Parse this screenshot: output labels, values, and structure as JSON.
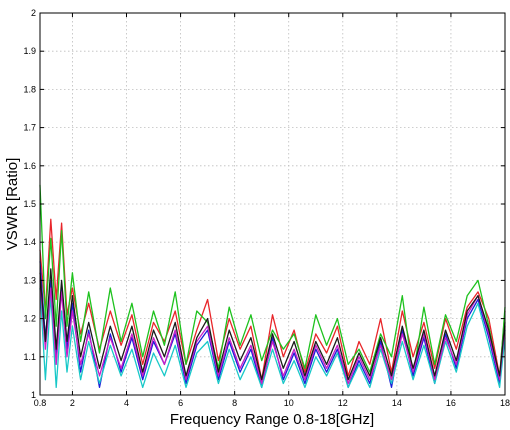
{
  "chart_data": {
    "type": "line",
    "title": "",
    "xlabel": "Frequency Range 0.8-18[GHz]",
    "ylabel": "VSWR [Ratio]",
    "xlim": [
      0.8,
      18
    ],
    "ylim": [
      1,
      2
    ],
    "xticks": [
      0.8,
      2,
      4,
      6,
      8,
      10,
      12,
      14,
      16,
      18
    ],
    "xtick_labels": [
      "0.8",
      "2",
      "4",
      "6",
      "8",
      "10",
      "12",
      "14",
      "16",
      "18"
    ],
    "yticks": [
      1,
      1.1,
      1.2,
      1.3,
      1.4,
      1.5,
      1.6,
      1.7,
      1.8,
      1.9,
      2
    ],
    "ytick_labels": [
      "1",
      "1.1",
      "1.2",
      "1.3",
      "1.4",
      "1.5",
      "1.6",
      "1.7",
      "1.8",
      "1.9",
      "2"
    ],
    "grid": true,
    "series": [
      {
        "color": "#e8262a",
        "x": [
          0.8,
          1.0,
          1.2,
          1.4,
          1.6,
          1.8,
          2.0,
          2.3,
          2.6,
          3.0,
          3.4,
          3.8,
          4.2,
          4.6,
          5.0,
          5.4,
          5.8,
          6.2,
          6.6,
          7.0,
          7.4,
          7.8,
          8.2,
          8.6,
          9.0,
          9.4,
          9.8,
          10.2,
          10.6,
          11.0,
          11.4,
          11.8,
          12.2,
          12.6,
          13.0,
          13.4,
          13.8,
          14.2,
          14.6,
          15.0,
          15.4,
          15.8,
          16.2,
          16.6,
          17.0,
          17.4,
          17.8,
          18.0
        ],
        "y": [
          1.38,
          1.22,
          1.46,
          1.25,
          1.45,
          1.21,
          1.28,
          1.16,
          1.24,
          1.12,
          1.22,
          1.13,
          1.21,
          1.08,
          1.19,
          1.14,
          1.22,
          1.08,
          1.17,
          1.25,
          1.09,
          1.2,
          1.12,
          1.18,
          1.04,
          1.21,
          1.1,
          1.17,
          1.06,
          1.16,
          1.11,
          1.18,
          1.05,
          1.14,
          1.08,
          1.2,
          1.06,
          1.22,
          1.1,
          1.19,
          1.07,
          1.2,
          1.12,
          1.23,
          1.27,
          1.2,
          1.05,
          1.22
        ]
      },
      {
        "color": "#1ec21e",
        "x": [
          0.8,
          1.0,
          1.2,
          1.4,
          1.6,
          1.8,
          2.0,
          2.3,
          2.6,
          3.0,
          3.4,
          3.8,
          4.2,
          4.6,
          5.0,
          5.4,
          5.8,
          6.2,
          6.6,
          7.0,
          7.4,
          7.8,
          8.2,
          8.6,
          9.0,
          9.4,
          9.8,
          10.2,
          10.6,
          11.0,
          11.4,
          11.8,
          12.2,
          12.6,
          13.0,
          13.4,
          13.8,
          14.2,
          14.6,
          15.0,
          15.4,
          15.8,
          16.2,
          16.6,
          17.0,
          17.4,
          17.8,
          18.0
        ],
        "y": [
          1.55,
          1.2,
          1.41,
          1.18,
          1.43,
          1.18,
          1.32,
          1.14,
          1.27,
          1.11,
          1.28,
          1.14,
          1.24,
          1.1,
          1.22,
          1.13,
          1.27,
          1.08,
          1.22,
          1.19,
          1.07,
          1.23,
          1.13,
          1.21,
          1.09,
          1.17,
          1.12,
          1.16,
          1.07,
          1.21,
          1.13,
          1.2,
          1.08,
          1.12,
          1.06,
          1.16,
          1.1,
          1.26,
          1.05,
          1.23,
          1.08,
          1.21,
          1.14,
          1.26,
          1.3,
          1.18,
          1.04,
          1.23
        ]
      },
      {
        "color": "#1c1cd8",
        "x": [
          0.8,
          1.0,
          1.2,
          1.4,
          1.6,
          1.8,
          2.0,
          2.3,
          2.6,
          3.0,
          3.4,
          3.8,
          4.2,
          4.6,
          5.0,
          5.4,
          5.8,
          6.2,
          6.6,
          7.0,
          7.4,
          7.8,
          8.2,
          8.6,
          9.0,
          9.4,
          9.8,
          10.2,
          10.6,
          11.0,
          11.4,
          11.8,
          12.2,
          12.6,
          13.0,
          13.4,
          13.8,
          14.2,
          14.6,
          15.0,
          15.4,
          15.8,
          16.2,
          16.6,
          17.0,
          17.4,
          17.8,
          18.0
        ],
        "y": [
          1.35,
          1.15,
          1.3,
          1.1,
          1.28,
          1.12,
          1.24,
          1.06,
          1.17,
          1.02,
          1.16,
          1.06,
          1.15,
          1.04,
          1.14,
          1.08,
          1.16,
          1.03,
          1.13,
          1.17,
          1.04,
          1.14,
          1.06,
          1.12,
          1.02,
          1.15,
          1.04,
          1.11,
          1.03,
          1.12,
          1.06,
          1.12,
          1.02,
          1.09,
          1.03,
          1.14,
          1.02,
          1.17,
          1.05,
          1.15,
          1.03,
          1.16,
          1.07,
          1.2,
          1.25,
          1.15,
          1.03,
          1.17
        ]
      },
      {
        "color": "#18c8c8",
        "x": [
          0.8,
          1.0,
          1.2,
          1.4,
          1.6,
          1.8,
          2.0,
          2.3,
          2.6,
          3.0,
          3.4,
          3.8,
          4.2,
          4.6,
          5.0,
          5.4,
          5.8,
          6.2,
          6.6,
          7.0,
          7.4,
          7.8,
          8.2,
          8.6,
          9.0,
          9.4,
          9.8,
          10.2,
          10.6,
          11.0,
          11.4,
          11.8,
          12.2,
          12.6,
          13.0,
          13.4,
          13.8,
          14.2,
          14.6,
          15.0,
          15.4,
          15.8,
          16.2,
          16.6,
          17.0,
          17.4,
          17.8,
          18.0
        ],
        "y": [
          1.28,
          1.04,
          1.26,
          1.02,
          1.22,
          1.06,
          1.18,
          1.04,
          1.14,
          1.03,
          1.13,
          1.05,
          1.12,
          1.02,
          1.11,
          1.05,
          1.13,
          1.02,
          1.11,
          1.14,
          1.03,
          1.12,
          1.04,
          1.1,
          1.02,
          1.12,
          1.03,
          1.09,
          1.02,
          1.1,
          1.05,
          1.11,
          1.02,
          1.08,
          1.02,
          1.12,
          1.03,
          1.14,
          1.04,
          1.13,
          1.03,
          1.14,
          1.06,
          1.18,
          1.24,
          1.13,
          1.02,
          1.15
        ]
      },
      {
        "color": "#c81ec8",
        "x": [
          0.8,
          1.0,
          1.2,
          1.4,
          1.6,
          1.8,
          2.0,
          2.3,
          2.6,
          3.0,
          3.4,
          3.8,
          4.2,
          4.6,
          5.0,
          5.4,
          5.8,
          6.2,
          6.6,
          7.0,
          7.4,
          7.8,
          8.2,
          8.6,
          9.0,
          9.4,
          9.8,
          10.2,
          10.6,
          11.0,
          11.4,
          11.8,
          12.2,
          12.6,
          13.0,
          13.4,
          13.8,
          14.2,
          14.6,
          15.0,
          15.4,
          15.8,
          16.2,
          16.6,
          17.0,
          17.4,
          17.8,
          18.0
        ],
        "y": [
          1.3,
          1.12,
          1.28,
          1.08,
          1.27,
          1.1,
          1.22,
          1.08,
          1.16,
          1.05,
          1.15,
          1.07,
          1.16,
          1.05,
          1.15,
          1.08,
          1.17,
          1.04,
          1.14,
          1.18,
          1.05,
          1.15,
          1.07,
          1.13,
          1.03,
          1.14,
          1.05,
          1.12,
          1.04,
          1.13,
          1.07,
          1.13,
          1.03,
          1.1,
          1.04,
          1.13,
          1.04,
          1.16,
          1.06,
          1.16,
          1.04,
          1.15,
          1.08,
          1.21,
          1.26,
          1.16,
          1.04,
          1.18
        ]
      },
      {
        "color": "#1a1a1a",
        "x": [
          0.8,
          1.0,
          1.2,
          1.4,
          1.6,
          1.8,
          2.0,
          2.3,
          2.6,
          3.0,
          3.4,
          3.8,
          4.2,
          4.6,
          5.0,
          5.4,
          5.8,
          6.2,
          6.6,
          7.0,
          7.4,
          7.8,
          8.2,
          8.6,
          9.0,
          9.4,
          9.8,
          10.2,
          10.6,
          11.0,
          11.4,
          11.8,
          12.2,
          12.6,
          13.0,
          13.4,
          13.8,
          14.2,
          14.6,
          15.0,
          15.4,
          15.8,
          16.2,
          16.6,
          17.0,
          17.4,
          17.8,
          18.0
        ],
        "y": [
          1.32,
          1.14,
          1.33,
          1.12,
          1.3,
          1.14,
          1.26,
          1.1,
          1.19,
          1.07,
          1.18,
          1.09,
          1.18,
          1.06,
          1.17,
          1.1,
          1.19,
          1.05,
          1.15,
          1.2,
          1.06,
          1.17,
          1.09,
          1.15,
          1.04,
          1.16,
          1.07,
          1.14,
          1.05,
          1.14,
          1.08,
          1.15,
          1.04,
          1.11,
          1.05,
          1.15,
          1.05,
          1.18,
          1.07,
          1.17,
          1.05,
          1.17,
          1.09,
          1.22,
          1.26,
          1.17,
          1.05,
          1.19
        ]
      }
    ]
  }
}
